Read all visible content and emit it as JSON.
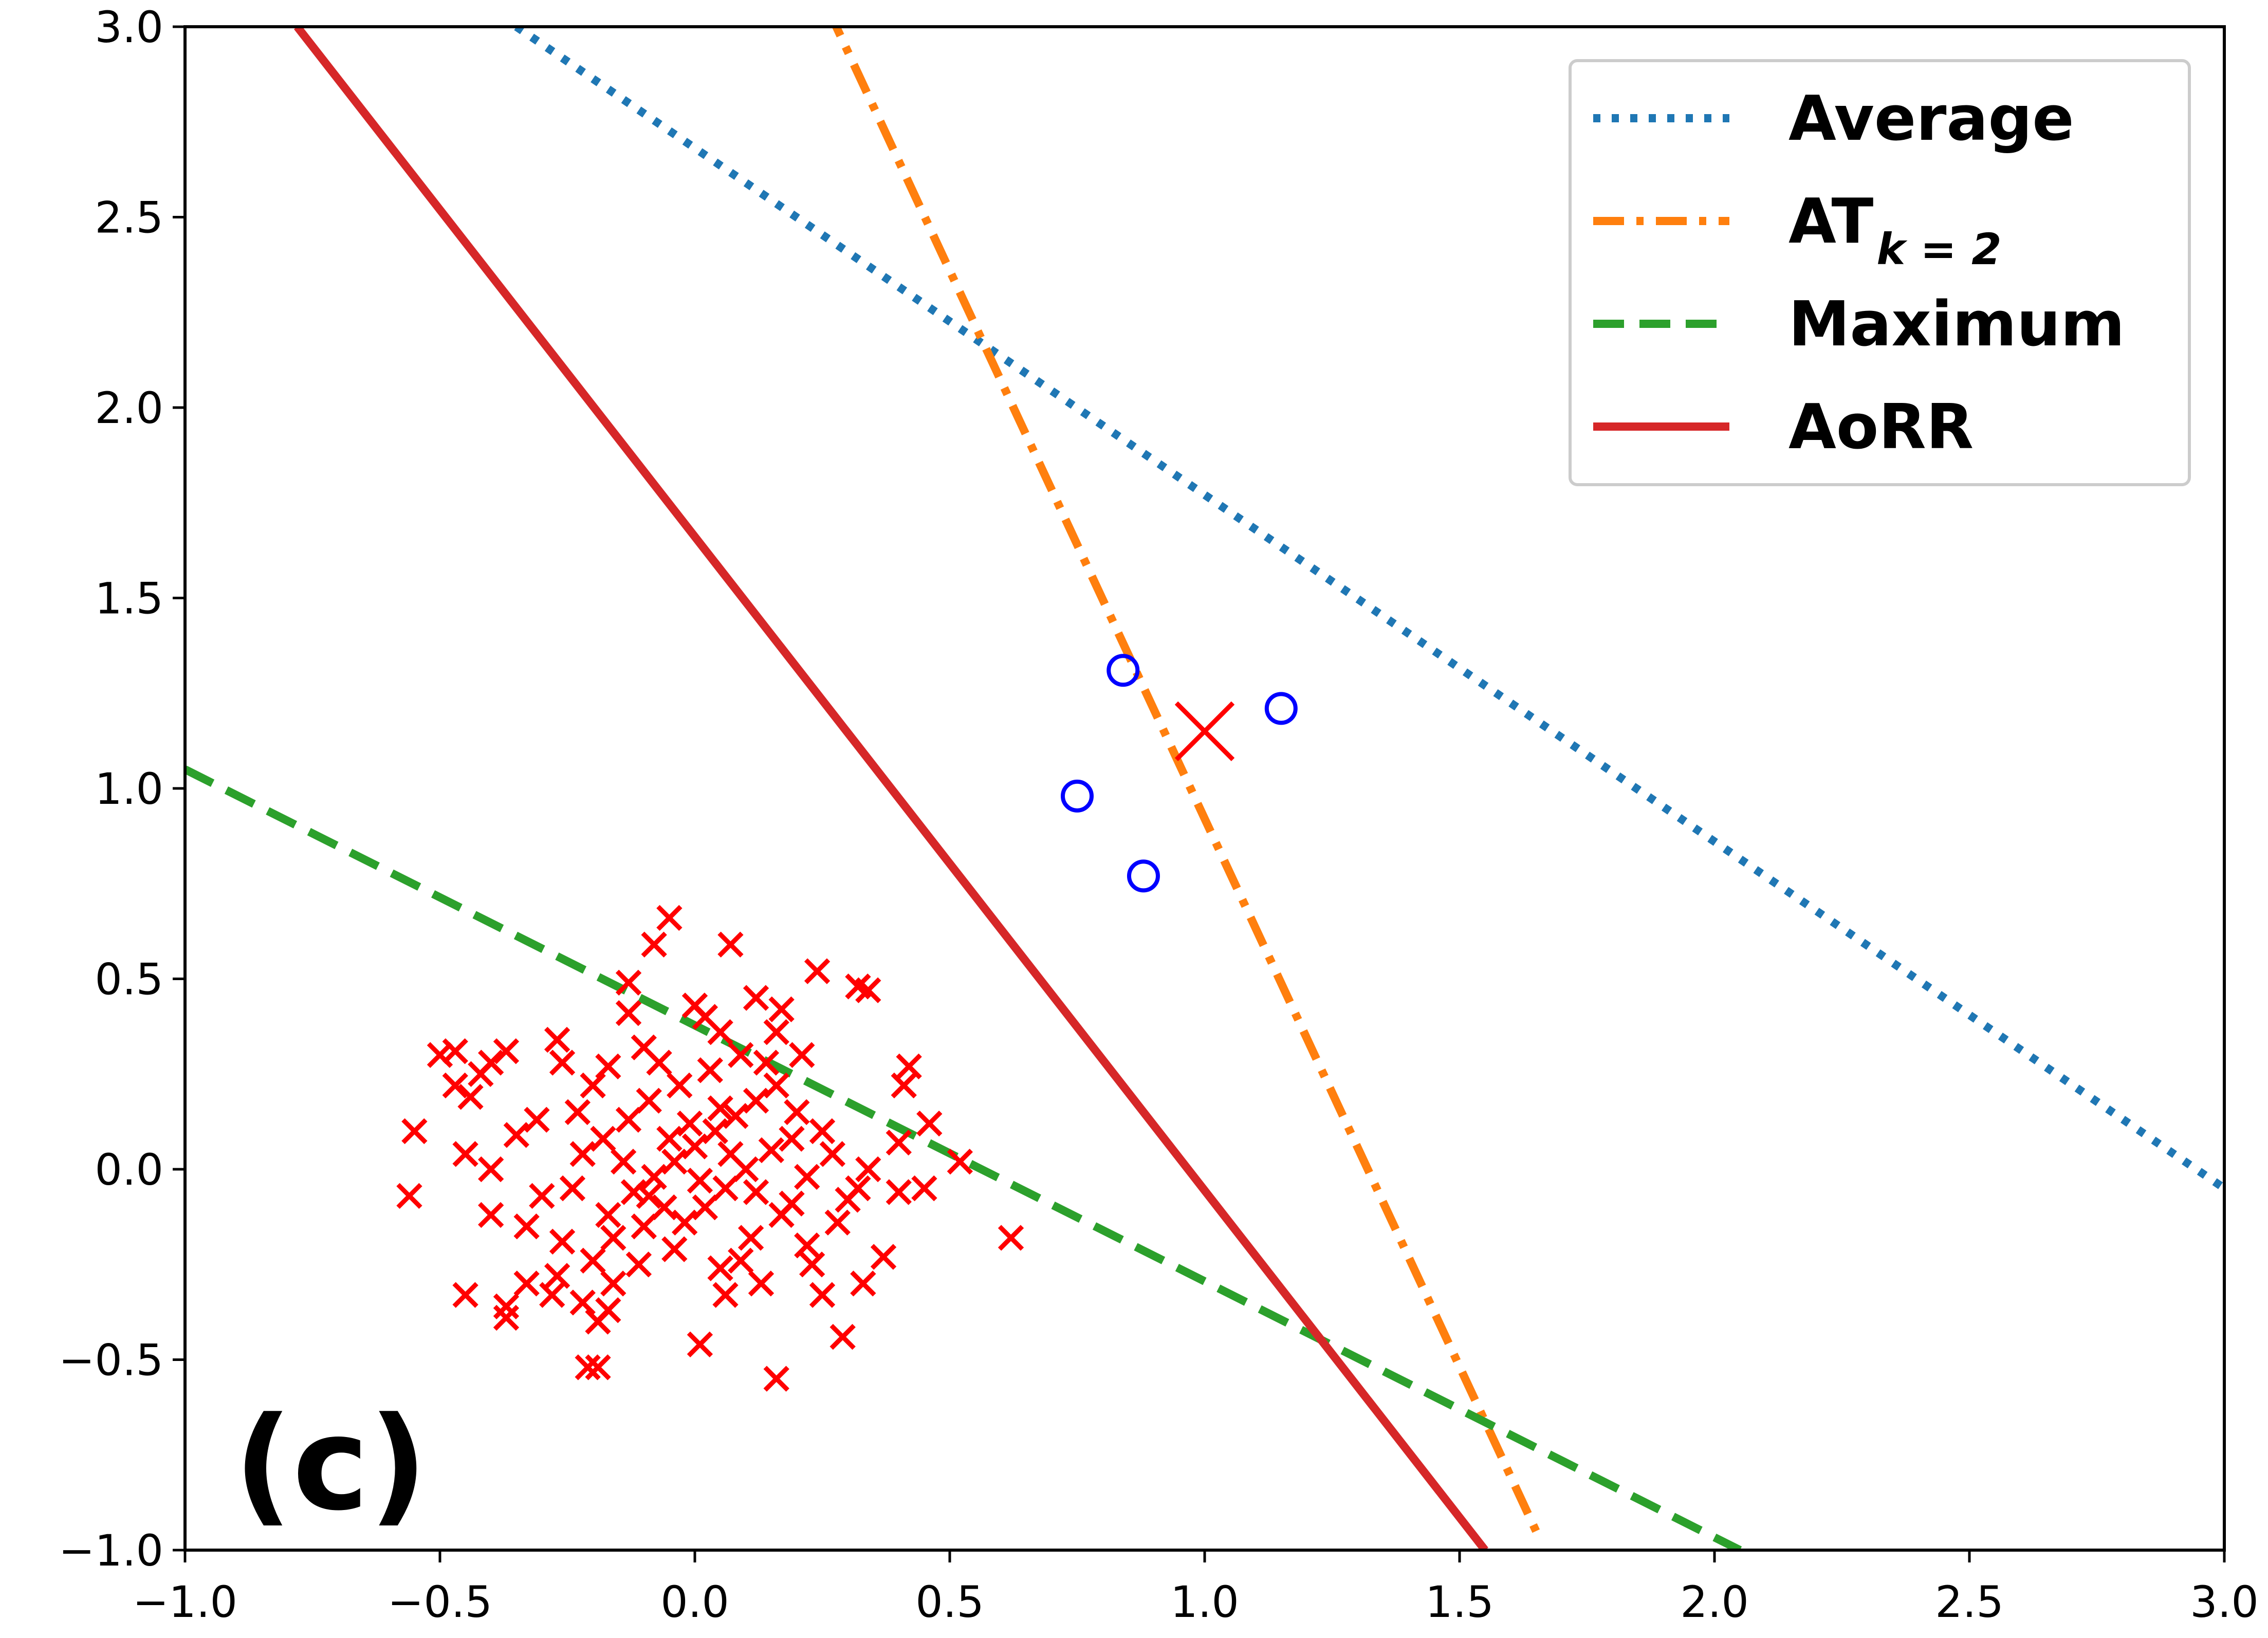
{
  "chart_data": {
    "type": "scatter",
    "title": "",
    "xlabel": "",
    "ylabel": "",
    "panel_label": "(c)",
    "xlim": [
      -1.0,
      3.0
    ],
    "ylim": [
      -1.0,
      3.0
    ],
    "xticks": [
      "−1.0",
      "−0.5",
      "0.0",
      "0.5",
      "1.0",
      "1.5",
      "2.0",
      "2.5",
      "3.0"
    ],
    "yticks": [
      "−1.0",
      "−0.5",
      "0.0",
      "0.5",
      "1.0",
      "1.5",
      "2.0",
      "2.5",
      "3.0"
    ],
    "xtick_values": [
      -1.0,
      -0.5,
      0.0,
      0.5,
      1.0,
      1.5,
      2.0,
      2.5,
      3.0
    ],
    "ytick_values": [
      -1.0,
      -0.5,
      0.0,
      0.5,
      1.0,
      1.5,
      2.0,
      2.5,
      3.0
    ],
    "grid": false,
    "legend_position": "top-right",
    "lines": [
      {
        "name": "Average",
        "label_main": "Average",
        "label_sub": "",
        "style": "dotted",
        "color": "#1f77b4",
        "x": [
          -0.35,
          3.0
        ],
        "y": [
          3.0,
          -0.05
        ]
      },
      {
        "name": "AT_k=2",
        "label_main": "AT",
        "label_sub": "k = 2",
        "style": "dashdot",
        "color": "#ff7f0e",
        "x": [
          0.26,
          1.65
        ],
        "y": [
          3.05,
          -0.95
        ]
      },
      {
        "name": "Maximum",
        "label_main": "Maximum",
        "label_sub": "",
        "style": "dashed",
        "color": "#2ca02c",
        "x": [
          -1.0,
          2.05
        ],
        "y": [
          1.05,
          -1.0
        ]
      },
      {
        "name": "AoRR",
        "label_main": "AoRR",
        "label_sub": "",
        "style": "solid",
        "color": "#d62728",
        "x": [
          -0.78,
          1.55
        ],
        "y": [
          3.0,
          -1.0
        ]
      }
    ],
    "positive_points": {
      "name": "positive class (blue circles)",
      "color": "#0000ff",
      "points": [
        [
          0.84,
          1.31
        ],
        [
          1.15,
          1.21
        ],
        [
          0.75,
          0.98
        ],
        [
          0.88,
          0.77
        ]
      ]
    },
    "outlier_point": {
      "name": "negative outlier (large red cross)",
      "color": "#ff0000",
      "point": [
        1.0,
        1.15
      ]
    },
    "negative_points": {
      "name": "negative class (red crosses)",
      "color": "#ff0000",
      "points": [
        [
          -0.05,
          0.66
        ],
        [
          -0.08,
          0.59
        ],
        [
          0.07,
          0.59
        ],
        [
          0.24,
          0.52
        ],
        [
          0.32,
          0.48
        ],
        [
          0.34,
          0.47
        ],
        [
          -0.47,
          0.31
        ],
        [
          -0.5,
          0.3
        ],
        [
          -0.37,
          0.31
        ],
        [
          -0.4,
          0.28
        ],
        [
          -0.42,
          0.25
        ],
        [
          -0.47,
          0.22
        ],
        [
          -0.44,
          0.19
        ],
        [
          -0.27,
          0.34
        ],
        [
          -0.26,
          0.28
        ],
        [
          -0.17,
          0.27
        ],
        [
          -0.13,
          0.41
        ],
        [
          -0.13,
          0.49
        ],
        [
          0.0,
          0.43
        ],
        [
          0.02,
          0.4
        ],
        [
          0.12,
          0.45
        ],
        [
          0.17,
          0.42
        ],
        [
          0.16,
          0.36
        ],
        [
          0.21,
          0.3
        ],
        [
          0.42,
          0.27
        ],
        [
          0.41,
          0.22
        ],
        [
          0.05,
          0.36
        ],
        [
          -0.1,
          0.32
        ],
        [
          -0.07,
          0.28
        ],
        [
          -0.2,
          0.22
        ],
        [
          -0.23,
          0.15
        ],
        [
          -0.31,
          0.13
        ],
        [
          -0.35,
          0.09
        ],
        [
          -0.4,
          0.0
        ],
        [
          -0.45,
          0.04
        ],
        [
          -0.55,
          0.1
        ],
        [
          -0.56,
          -0.07
        ],
        [
          -0.4,
          -0.12
        ],
        [
          -0.3,
          -0.07
        ],
        [
          -0.33,
          -0.15
        ],
        [
          -0.26,
          -0.19
        ],
        [
          -0.2,
          -0.24
        ],
        [
          -0.16,
          -0.3
        ],
        [
          -0.22,
          -0.35
        ],
        [
          -0.28,
          -0.33
        ],
        [
          -0.33,
          -0.3
        ],
        [
          -0.37,
          -0.36
        ],
        [
          -0.45,
          -0.33
        ],
        [
          -0.37,
          -0.39
        ],
        [
          -0.19,
          -0.4
        ],
        [
          -0.17,
          -0.37
        ],
        [
          -0.21,
          -0.52
        ],
        [
          -0.19,
          -0.52
        ],
        [
          0.01,
          -0.46
        ],
        [
          0.06,
          -0.33
        ],
        [
          0.13,
          -0.3
        ],
        [
          0.16,
          -0.55
        ],
        [
          0.25,
          -0.33
        ],
        [
          0.23,
          -0.25
        ],
        [
          0.29,
          -0.44
        ],
        [
          0.33,
          -0.3
        ],
        [
          0.37,
          -0.23
        ],
        [
          0.45,
          -0.05
        ],
        [
          0.4,
          -0.06
        ],
        [
          0.52,
          0.02
        ],
        [
          0.46,
          0.12
        ],
        [
          0.4,
          0.07
        ],
        [
          0.34,
          0.0
        ],
        [
          0.3,
          -0.08
        ],
        [
          0.28,
          -0.14
        ],
        [
          0.22,
          -0.2
        ],
        [
          0.19,
          -0.09
        ],
        [
          0.11,
          -0.18
        ],
        [
          0.05,
          -0.26
        ],
        [
          -0.04,
          -0.21
        ],
        [
          -0.1,
          -0.15
        ],
        [
          -0.17,
          -0.12
        ],
        [
          -0.12,
          -0.06
        ],
        [
          -0.08,
          -0.02
        ],
        [
          -0.04,
          0.02
        ],
        [
          0.0,
          0.06
        ],
        [
          0.04,
          0.1
        ],
        [
          0.08,
          0.14
        ],
        [
          0.12,
          0.18
        ],
        [
          0.16,
          0.22
        ],
        [
          0.2,
          0.15
        ],
        [
          0.25,
          0.1
        ],
        [
          0.15,
          0.05
        ],
        [
          0.1,
          0.0
        ],
        [
          0.06,
          -0.05
        ],
        [
          0.02,
          -0.1
        ],
        [
          -0.02,
          -0.14
        ],
        [
          -0.06,
          -0.1
        ],
        [
          -0.14,
          0.02
        ],
        [
          -0.18,
          0.08
        ],
        [
          -0.22,
          0.04
        ],
        [
          -0.24,
          -0.05
        ],
        [
          -0.13,
          0.13
        ],
        [
          -0.09,
          0.18
        ],
        [
          -0.03,
          0.22
        ],
        [
          0.03,
          0.26
        ],
        [
          0.09,
          0.3
        ],
        [
          0.14,
          0.28
        ],
        [
          -0.01,
          0.12
        ],
        [
          0.05,
          0.16
        ],
        [
          -0.05,
          0.08
        ],
        [
          0.01,
          -0.03
        ],
        [
          -0.09,
          -0.07
        ],
        [
          0.07,
          0.04
        ],
        [
          0.12,
          -0.06
        ],
        [
          0.17,
          -0.12
        ],
        [
          0.22,
          -0.02
        ],
        [
          0.27,
          0.04
        ],
        [
          0.32,
          -0.05
        ],
        [
          0.62,
          -0.18
        ],
        [
          -0.27,
          -0.28
        ],
        [
          -0.11,
          -0.25
        ],
        [
          0.19,
          0.08
        ],
        [
          -0.16,
          -0.18
        ],
        [
          0.09,
          -0.24
        ]
      ]
    }
  }
}
